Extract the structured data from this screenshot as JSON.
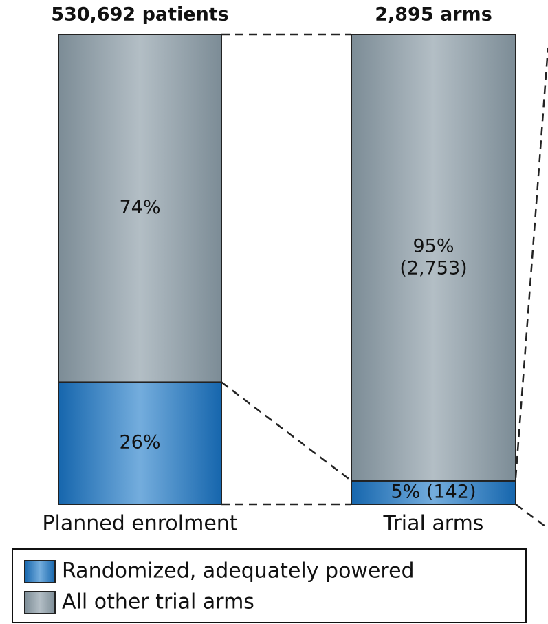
{
  "chart_data": {
    "type": "bar",
    "stacked": true,
    "categories": [
      "Planned enrolment",
      "Trial arms"
    ],
    "totals": [
      "530,692 patients",
      "2,895 arms"
    ],
    "ylim": [
      0,
      100
    ],
    "series": [
      {
        "name": "Randomized, adequately powered",
        "color": "#2a7cc4",
        "values": [
          26,
          5
        ],
        "value_labels": [
          "26%",
          "5% (142)"
        ]
      },
      {
        "name": "All other trial arms",
        "color": "#8e9ca5",
        "values": [
          74,
          95
        ],
        "value_labels": [
          "74%",
          "95%\n(2,753)"
        ]
      }
    ],
    "legend": "bottom"
  }
}
